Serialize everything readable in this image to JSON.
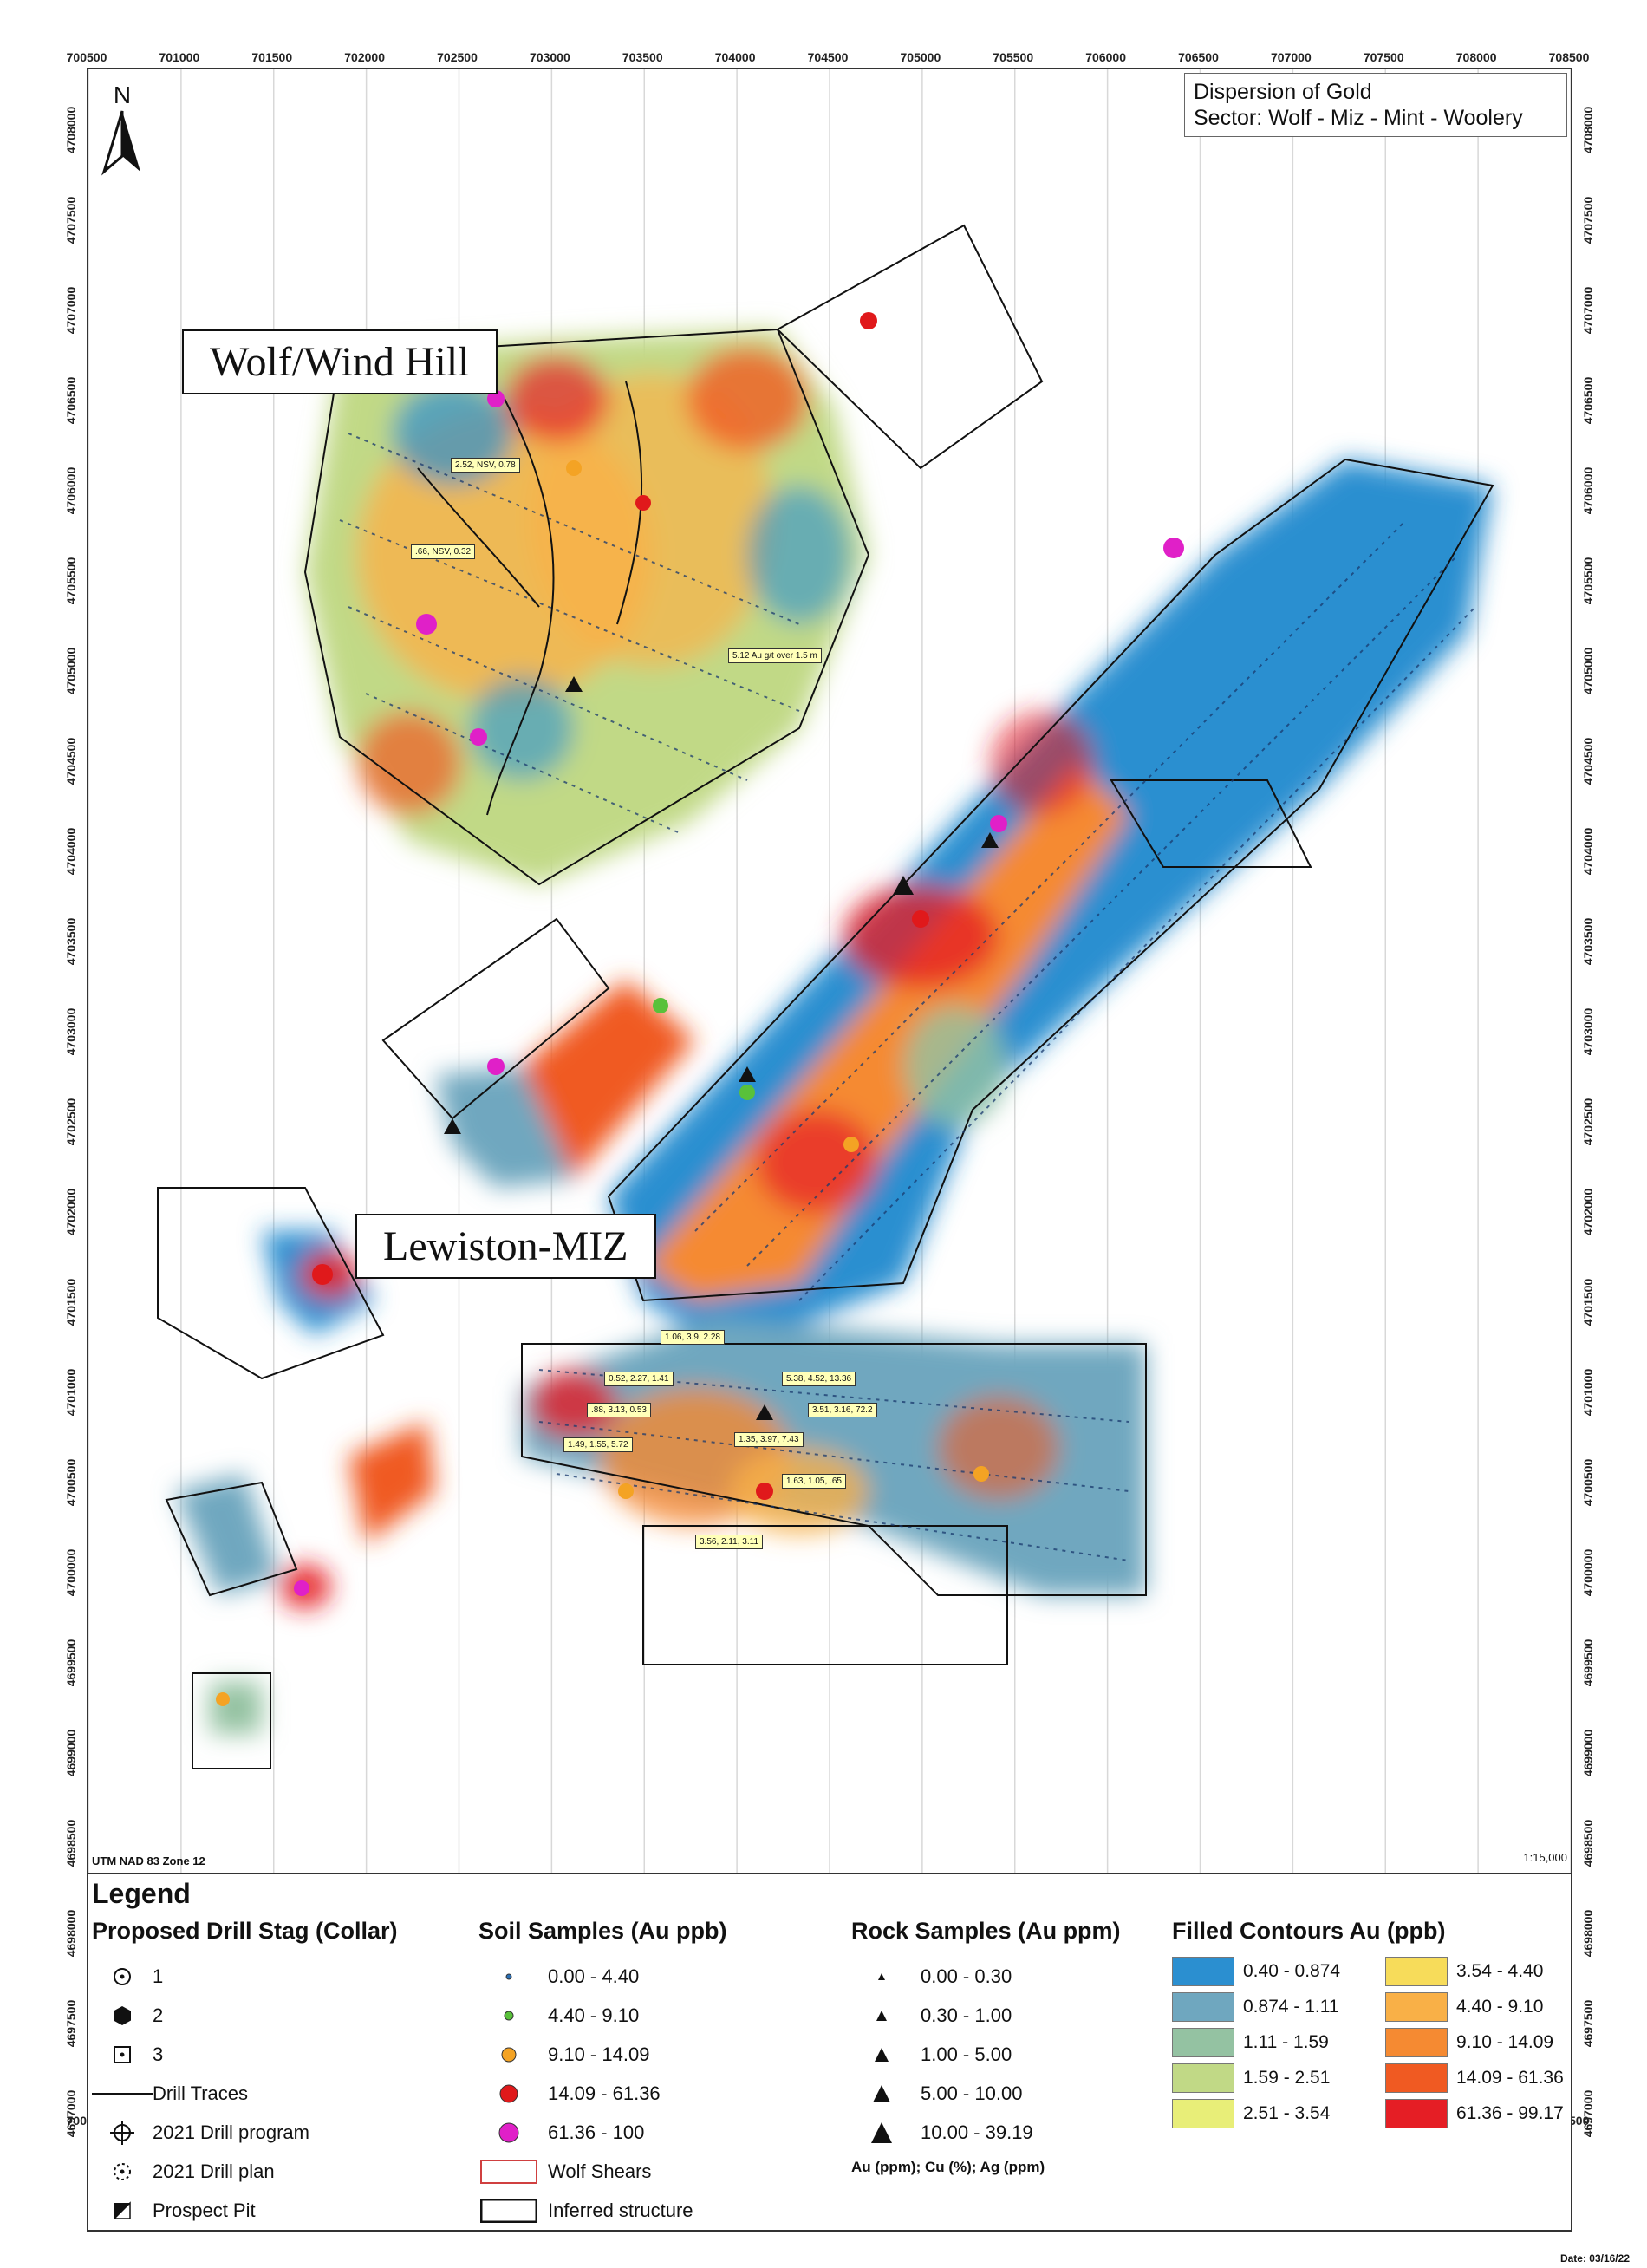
{
  "map_title": {
    "line1": "Dispersion of Gold",
    "line2": "Sector: Wolf - Miz - Mint - Woolery"
  },
  "north_label": "N",
  "x_ticks": [
    "700500",
    "701000",
    "701500",
    "702000",
    "702500",
    "703000",
    "703500",
    "704000",
    "704500",
    "705000",
    "705500",
    "706000",
    "706500",
    "707000",
    "707500",
    "708000",
    "708500"
  ],
  "y_ticks": [
    "4708000",
    "4707500",
    "4707000",
    "4706500",
    "4706000",
    "4705500",
    "4705000",
    "4704500",
    "4704000",
    "4703500",
    "4703000",
    "4702500",
    "4702000",
    "4701500",
    "4701000",
    "4700500",
    "4700000",
    "4699500",
    "4699000",
    "4698500",
    "4698000",
    "4697500",
    "4697000"
  ],
  "area_labels": {
    "wolf": "Wolf/Wind Hill",
    "lewiston": "Lewiston-MIZ"
  },
  "sample_tags": [
    "2.52, NSV, 0.78",
    ".66, NSV, 0.32",
    "5.12 Au g/t over 1.5 m",
    "1.06, 3.9, 2.28",
    "0.52, 2.27, 1.41",
    "5.38, 4.52, 13.36",
    ".88, 3.13, 0.53",
    "3.51, 3.16, 72.2",
    "1.49, 1.55, 5.72",
    "1.35, 3.97, 7.43",
    "1.63, 1.05, .65",
    "3.56, 2.11, 3.11"
  ],
  "projection": "UTM NAD 83 Zone 12",
  "scale": "1:15,000",
  "date": "Date: 03/16/22",
  "legend": {
    "title": "Legend",
    "drill": {
      "heading": "Proposed Drill Stag (Collar)",
      "items": [
        "1",
        "2",
        "3",
        "Drill Traces",
        "2021 Drill program",
        "2021 Drill plan",
        "Prospect Pit"
      ]
    },
    "soil": {
      "heading": "Soil Samples (Au ppb)",
      "items": [
        "0.00 - 4.40",
        "4.40 - 9.10",
        "9.10 - 14.09",
        "14.09 - 61.36",
        "61.36 - 100"
      ],
      "colors": [
        "#2a6fb5",
        "#59c13a",
        "#f4a324",
        "#e0191b",
        "#e020c8"
      ],
      "extra": [
        "Wolf Shears",
        "Inferred structure"
      ]
    },
    "rock": {
      "heading": "Rock Samples (Au ppm)",
      "items": [
        "0.00 - 0.30",
        "0.30 - 1.00",
        "1.00 - 5.00",
        "5.00 - 10.00",
        "10.00 - 39.19"
      ],
      "note": "Au (ppm); Cu (%); Ag (ppm)"
    },
    "contours": {
      "heading": "Filled Contours Au (ppb)",
      "items": [
        {
          "label": "0.40 - 0.874",
          "color": "#2b8fd0"
        },
        {
          "label": "3.54 - 4.40",
          "color": "#f7dc5a"
        },
        {
          "label": "0.874 - 1.11",
          "color": "#6fa7bf"
        },
        {
          "label": "4.40 - 9.10",
          "color": "#f9b047"
        },
        {
          "label": "1.11 - 1.59",
          "color": "#94c2a2"
        },
        {
          "label": "9.10 - 14.09",
          "color": "#f58a32"
        },
        {
          "label": "1.59 - 2.51",
          "color": "#c1d986"
        },
        {
          "label": "14.09 - 61.36",
          "color": "#f05a22"
        },
        {
          "label": "2.51 - 3.54",
          "color": "#e8ee78"
        },
        {
          "label": "61.36 - 99.17",
          "color": "#e51e25"
        }
      ]
    }
  }
}
